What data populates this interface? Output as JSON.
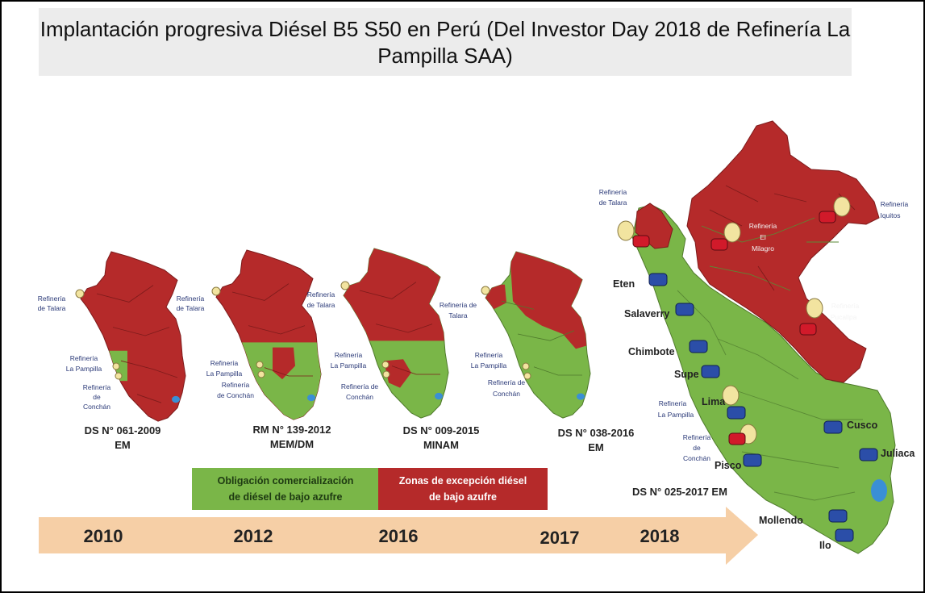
{
  "title": "Implantación progresiva Diésel B5 S50 en Perú (Del Investor Day 2018 de Refinería La Pampilla SAA)",
  "colors": {
    "restricted": "#b52a2a",
    "obligation": "#7ab648",
    "arrow": "#f6cfa6",
    "tank": "#2b4ea8",
    "border": "#7d1b1b"
  },
  "timeline": {
    "years": [
      "2010",
      "2012",
      "2016",
      "2017",
      "2018"
    ]
  },
  "decrees": [
    {
      "line1": "DS N° 061-2009",
      "line2": "EM"
    },
    {
      "line1": "RM N° 139-2012",
      "line2": "MEM/DM"
    },
    {
      "line1": "DS N° 009-2015",
      "line2": "MINAM"
    },
    {
      "line1": "DS N° 038-2016",
      "line2": "EM"
    },
    {
      "line1": "DS N° 025-2017 EM",
      "line2": ""
    }
  ],
  "legend": {
    "green_line1": "Obligación comercialización",
    "green_line2": "de diésel de bajo azufre",
    "red_line1": "Zonas de excepción diésel",
    "red_line2": "de bajo azufre"
  },
  "small_maps": {
    "m1": {
      "talara": [
        "Refinería",
        "de Talara"
      ],
      "pampilla": [
        "Refinería",
        "La Pampilla"
      ],
      "conchan": [
        "Refinería",
        "de",
        "Conchán"
      ]
    },
    "m2": {
      "talara": [
        "Refinería",
        "de Talara"
      ],
      "pampilla": [
        "Refinería",
        "La Pampilla"
      ],
      "conchan": [
        "Refinería",
        "de Conchán"
      ]
    },
    "m3": {
      "talara": [
        "Refinería",
        "de Talara"
      ],
      "pampilla": [
        "Refinería",
        "La Pampilla"
      ],
      "conchan": [
        "Refinería de",
        "Conchán"
      ]
    },
    "m4": {
      "talara": [
        "Refinería de",
        "Talara"
      ],
      "pampilla": [
        "Refinería",
        "La Pampilla"
      ],
      "conchan": [
        "Refinería de",
        "Conchán"
      ]
    }
  },
  "big_map": {
    "refineries": {
      "talara": [
        "Refinería",
        "de Talara"
      ],
      "milagro": [
        "Refinería",
        "El",
        "Milagro"
      ],
      "iquitos": [
        "Refinería",
        "Iquitos"
      ],
      "pucallpa": [
        "Refinería",
        "Pucallpa"
      ],
      "pampilla": [
        "Refinería",
        "La Pampilla"
      ],
      "conchan": [
        "Refinería",
        "de",
        "Conchán"
      ]
    },
    "terminals": [
      "Eten",
      "Salaverry",
      "Chimbote",
      "Supe",
      "Lima",
      "Pisco",
      "Cusco",
      "Juliaca",
      "Mollendo",
      "Ilo"
    ]
  }
}
